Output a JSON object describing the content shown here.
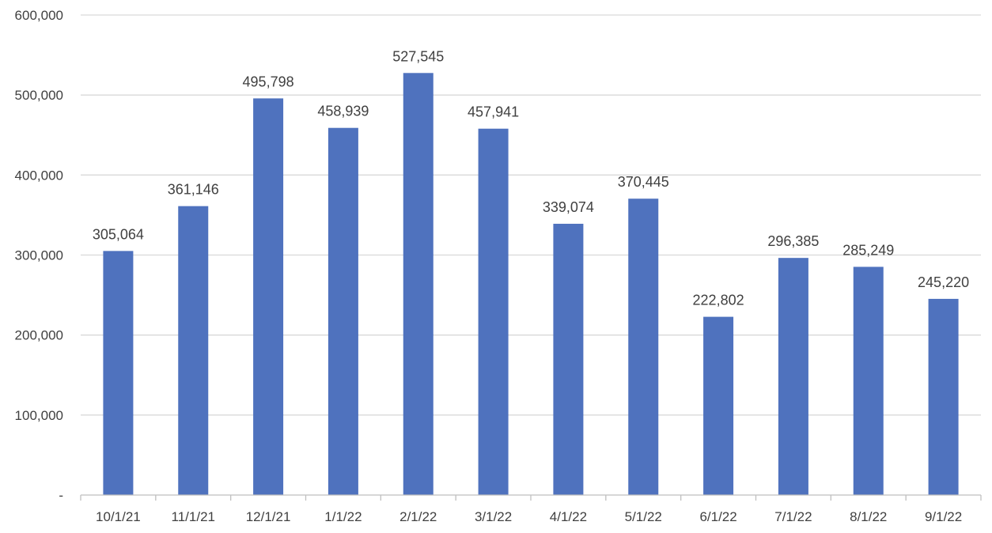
{
  "chart_data": {
    "type": "bar",
    "categories": [
      "10/1/21",
      "11/1/21",
      "12/1/21",
      "1/1/22",
      "2/1/22",
      "3/1/22",
      "4/1/22",
      "5/1/22",
      "6/1/22",
      "7/1/22",
      "8/1/22",
      "9/1/22"
    ],
    "values": [
      305064,
      361146,
      495798,
      458939,
      527545,
      457941,
      339074,
      370445,
      222802,
      296385,
      285249,
      245220
    ],
    "data_labels": [
      "305,064",
      "361,146",
      "495,798",
      "458,939",
      "527,545",
      "457,941",
      "339,074",
      "370,445",
      "222,802",
      "296,385",
      "285,249",
      "245,220"
    ],
    "y_ticks": [
      0,
      100000,
      200000,
      300000,
      400000,
      500000,
      600000
    ],
    "y_tick_labels": [
      "-",
      "100,000",
      "200,000",
      "300,000",
      "400,000",
      "500,000",
      "600,000"
    ],
    "ylim": [
      0,
      600000
    ],
    "grid": true,
    "legend": "none",
    "title": "",
    "xlabel": "",
    "ylabel": "",
    "colors": {
      "bar": "#4f72be"
    }
  }
}
